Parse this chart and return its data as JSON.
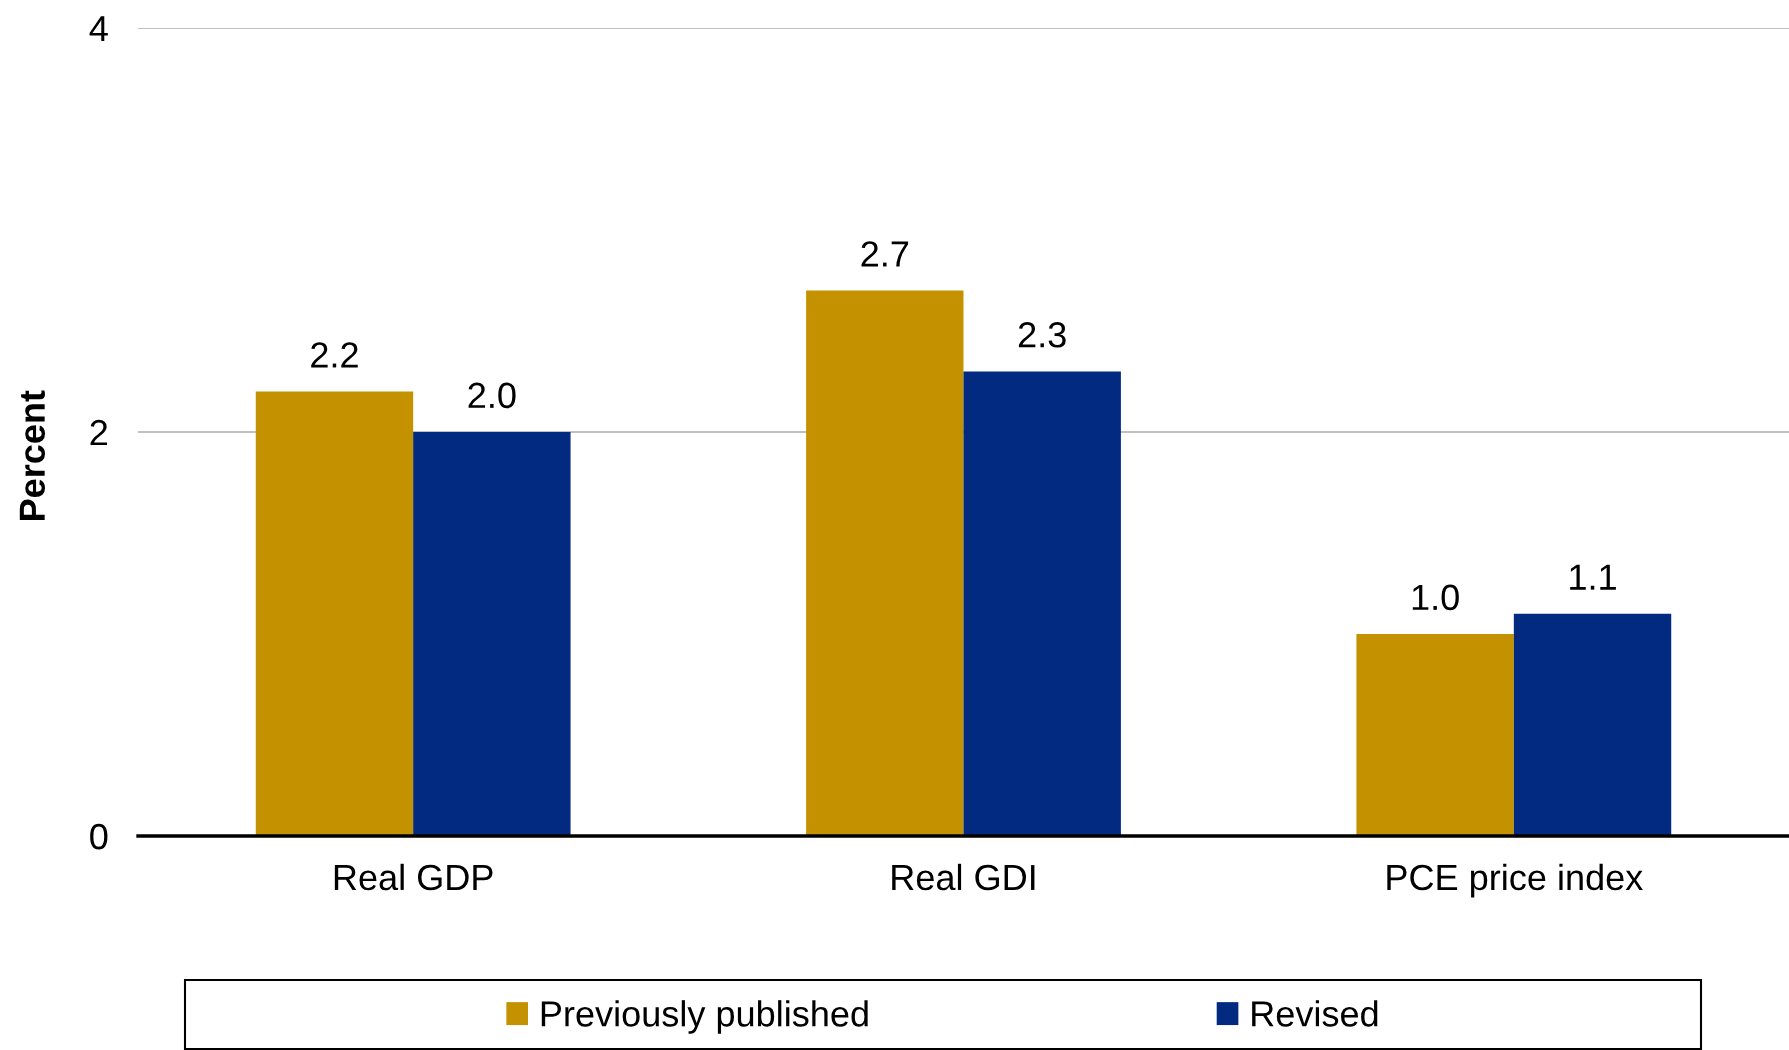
{
  "chart_data": {
    "type": "bar",
    "ylabel": "Percent",
    "categories": [
      "Real GDP",
      "Real GDI",
      "PCE price index"
    ],
    "series": [
      {
        "name": "Previously published",
        "color": "#c49100",
        "values": [
          2.2,
          2.7,
          1.0
        ],
        "value_labels": [
          "2.2",
          "2.7",
          "1.0"
        ]
      },
      {
        "name": "Revised",
        "color": "#012a80",
        "values": [
          2.0,
          2.3,
          1.1
        ],
        "value_labels": [
          "2.0",
          "2.3",
          "1.1"
        ]
      }
    ],
    "ylim": [
      0,
      4
    ],
    "yticks": [
      0,
      2,
      4
    ],
    "grid": "y",
    "legend": "bottom"
  }
}
